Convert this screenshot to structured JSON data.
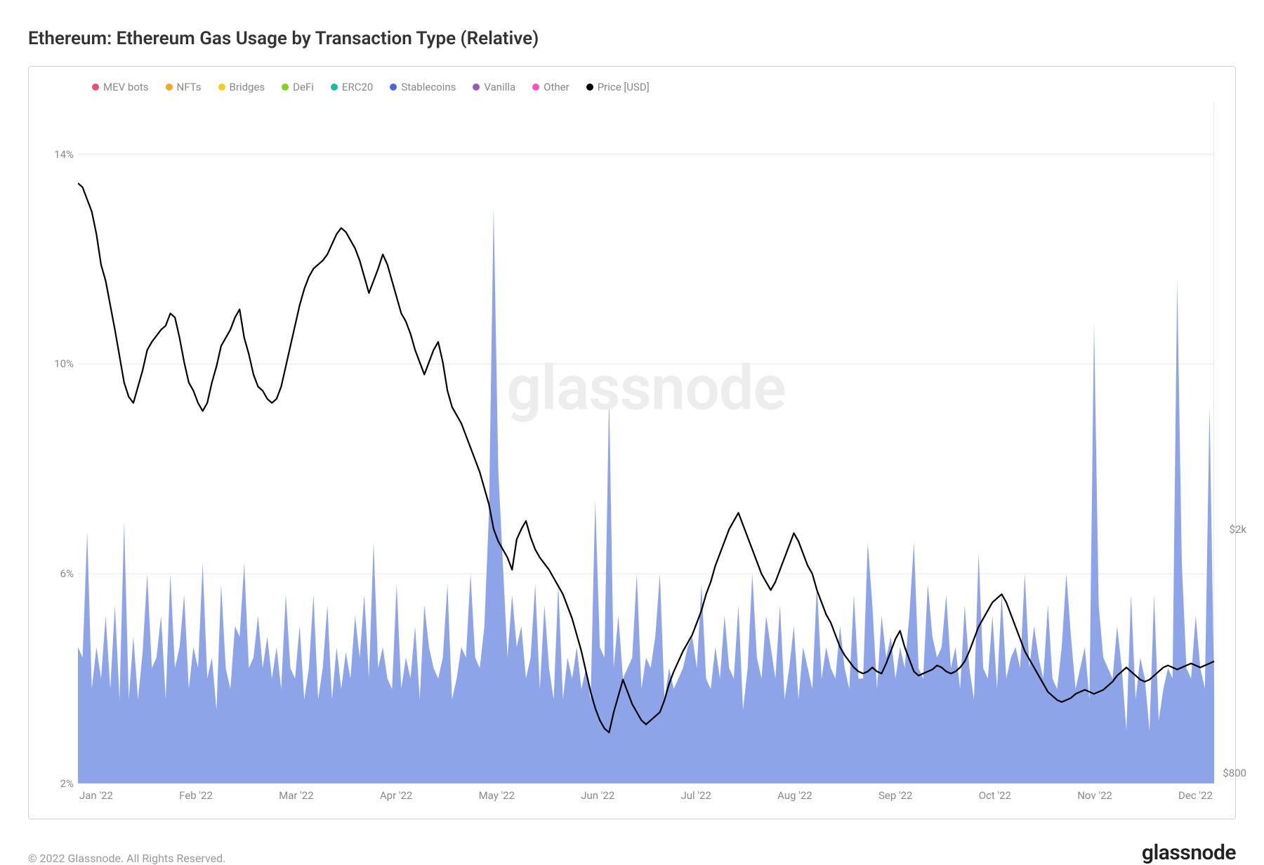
{
  "title": "Ethereum: Ethereum Gas Usage by Transaction Type (Relative)",
  "watermark": "glassnode",
  "copyright": "© 2022 Glassnode. All Rights Reserved.",
  "brand": "glassnode",
  "legend": [
    {
      "label": "MEV bots",
      "color": "#f04e6e"
    },
    {
      "label": "NFTs",
      "color": "#f5a623"
    },
    {
      "label": "Bridges",
      "color": "#f8cc1c"
    },
    {
      "label": "DeFi",
      "color": "#7ed321"
    },
    {
      "label": "ERC20",
      "color": "#1abc9c"
    },
    {
      "label": "Stablecoins",
      "color": "#4a68d8"
    },
    {
      "label": "Vanilla",
      "color": "#9b59b6"
    },
    {
      "label": "Other",
      "color": "#ff4fc1"
    },
    {
      "label": "Price [USD]",
      "color": "#000000"
    }
  ],
  "chart": {
    "type": "area+line",
    "background_color": "#ffffff",
    "grid_color": "#e8e8e8",
    "area_color": "#8ea4e8",
    "area_opacity": 1.0,
    "line_color": "#000000",
    "line_width": 2.2,
    "x_labels": [
      "Jan '22",
      "Feb '22",
      "Mar '22",
      "Apr '22",
      "May '22",
      "Jun '22",
      "Jul '22",
      "Aug '22",
      "Sep '22",
      "Oct '22",
      "Nov '22",
      "Dec '22"
    ],
    "y_left": {
      "min": 2,
      "max": 15,
      "ticks": [
        2,
        6,
        10,
        14
      ],
      "tick_labels": [
        "2%",
        "6%",
        "10%",
        "14%"
      ]
    },
    "y_right": {
      "min": 750,
      "max": 4100,
      "ticks": [
        800,
        2000
      ],
      "tick_labels": [
        "$800",
        "$2k"
      ]
    },
    "stablecoins_pct": [
      4.6,
      4.4,
      6.8,
      3.8,
      4.6,
      4.0,
      5.2,
      3.8,
      5.4,
      3.6,
      7.0,
      3.6,
      4.8,
      3.6,
      4.5,
      6.0,
      4.2,
      4.4,
      5.2,
      3.6,
      6.0,
      4.2,
      4.6,
      5.6,
      3.8,
      4.6,
      4.2,
      6.2,
      4.0,
      4.4,
      3.4,
      5.8,
      4.2,
      3.8,
      5.0,
      4.8,
      6.2,
      4.2,
      4.4,
      5.2,
      4.2,
      4.8,
      4.0,
      4.6,
      3.8,
      5.6,
      4.2,
      4.0,
      5.0,
      3.6,
      4.2,
      5.6,
      3.6,
      4.2,
      5.4,
      3.6,
      4.6,
      3.8,
      4.5,
      4.0,
      5.2,
      4.4,
      5.6,
      4.0,
      6.6,
      4.2,
      4.6,
      4.0,
      3.8,
      5.8,
      3.8,
      4.4,
      4.0,
      5.0,
      3.6,
      5.4,
      4.6,
      4.2,
      4.0,
      4.4,
      5.8,
      3.6,
      4.0,
      4.6,
      4.4,
      6.0,
      4.4,
      4.2,
      5.0,
      7.2,
      13.0,
      8.0,
      6.2,
      4.4,
      5.6,
      4.6,
      5.0,
      4.0,
      4.4,
      5.8,
      3.8,
      5.4,
      4.2,
      3.6,
      5.8,
      3.6,
      4.4,
      4.0,
      4.6,
      3.8,
      4.2,
      3.6,
      7.4,
      4.6,
      4.4,
      9.4,
      4.2,
      5.2,
      4.0,
      4.2,
      4.4,
      6.0,
      3.8,
      4.4,
      4.2,
      4.8,
      6.0,
      3.6,
      4.2,
      3.8,
      4.0,
      4.2,
      4.6,
      4.8,
      4.2,
      5.8,
      4.0,
      3.8,
      4.6,
      4.0,
      5.2,
      4.2,
      4.0,
      5.4,
      3.4,
      4.2,
      6.0,
      4.4,
      4.0,
      5.2,
      4.6,
      4.0,
      5.4,
      3.6,
      4.2,
      5.0,
      3.6,
      4.6,
      4.2,
      3.8,
      5.8,
      4.0,
      4.6,
      4.2,
      4.0,
      5.0,
      4.2,
      3.8,
      5.6,
      4.0,
      4.0,
      6.6,
      5.4,
      3.8,
      5.2,
      4.4,
      4.8,
      4.0,
      4.6,
      4.2,
      5.2,
      6.6,
      4.2,
      4.0,
      5.8,
      4.8,
      4.4,
      4.6,
      5.6,
      4.2,
      4.6,
      3.8,
      5.4,
      4.2,
      3.6,
      6.4,
      4.2,
      4.0,
      5.2,
      3.8,
      5.6,
      4.0,
      4.4,
      4.6,
      4.2,
      6.0,
      4.2,
      5.0,
      4.4,
      4.0,
      5.4,
      4.0,
      3.8,
      4.6,
      6.0,
      4.8,
      3.8,
      4.2,
      4.6,
      3.6,
      10.8,
      5.4,
      4.4,
      4.2,
      4.0,
      5.0,
      4.2,
      3.0,
      5.6,
      3.6,
      4.4,
      4.0,
      3.0,
      5.6,
      3.2,
      3.8,
      4.2,
      4.0,
      11.6,
      6.2,
      4.2,
      4.0,
      5.2,
      4.2,
      3.8,
      9.2,
      3.8
    ],
    "price_usd": [
      3700,
      3680,
      3620,
      3560,
      3450,
      3300,
      3220,
      3100,
      2980,
      2850,
      2720,
      2650,
      2620,
      2700,
      2780,
      2880,
      2920,
      2950,
      2980,
      3000,
      3060,
      3040,
      2940,
      2820,
      2720,
      2680,
      2620,
      2580,
      2620,
      2720,
      2800,
      2900,
      2940,
      2980,
      3040,
      3080,
      2940,
      2860,
      2760,
      2700,
      2680,
      2640,
      2620,
      2640,
      2700,
      2800,
      2900,
      3000,
      3100,
      3180,
      3240,
      3280,
      3300,
      3320,
      3350,
      3400,
      3450,
      3480,
      3460,
      3420,
      3380,
      3320,
      3240,
      3160,
      3220,
      3280,
      3350,
      3300,
      3220,
      3140,
      3060,
      3020,
      2960,
      2880,
      2820,
      2760,
      2820,
      2880,
      2920,
      2820,
      2680,
      2600,
      2560,
      2520,
      2460,
      2400,
      2340,
      2280,
      2200,
      2120,
      2000,
      1940,
      1900,
      1860,
      1800,
      1950,
      2000,
      2040,
      1960,
      1900,
      1860,
      1830,
      1800,
      1760,
      1720,
      1680,
      1620,
      1560,
      1480,
      1400,
      1300,
      1200,
      1120,
      1060,
      1020,
      1000,
      1100,
      1180,
      1260,
      1200,
      1140,
      1100,
      1060,
      1040,
      1060,
      1080,
      1100,
      1160,
      1240,
      1300,
      1350,
      1400,
      1440,
      1480,
      1540,
      1600,
      1680,
      1740,
      1820,
      1880,
      1940,
      2000,
      2040,
      2080,
      2020,
      1960,
      1900,
      1840,
      1780,
      1740,
      1700,
      1740,
      1800,
      1860,
      1920,
      1980,
      1940,
      1880,
      1820,
      1780,
      1700,
      1640,
      1580,
      1540,
      1480,
      1420,
      1380,
      1350,
      1320,
      1300,
      1290,
      1300,
      1320,
      1300,
      1290,
      1340,
      1400,
      1460,
      1500,
      1420,
      1360,
      1300,
      1280,
      1290,
      1300,
      1310,
      1330,
      1320,
      1300,
      1290,
      1300,
      1320,
      1350,
      1400,
      1460,
      1520,
      1560,
      1600,
      1640,
      1660,
      1680,
      1640,
      1580,
      1520,
      1460,
      1400,
      1360,
      1320,
      1280,
      1240,
      1200,
      1180,
      1160,
      1150,
      1160,
      1170,
      1190,
      1200,
      1210,
      1200,
      1190,
      1200,
      1210,
      1230,
      1250,
      1280,
      1300,
      1320,
      1300,
      1280,
      1260,
      1250,
      1260,
      1280,
      1300,
      1320,
      1330,
      1320,
      1310,
      1320,
      1330,
      1340,
      1330,
      1320,
      1330,
      1340,
      1350
    ]
  }
}
